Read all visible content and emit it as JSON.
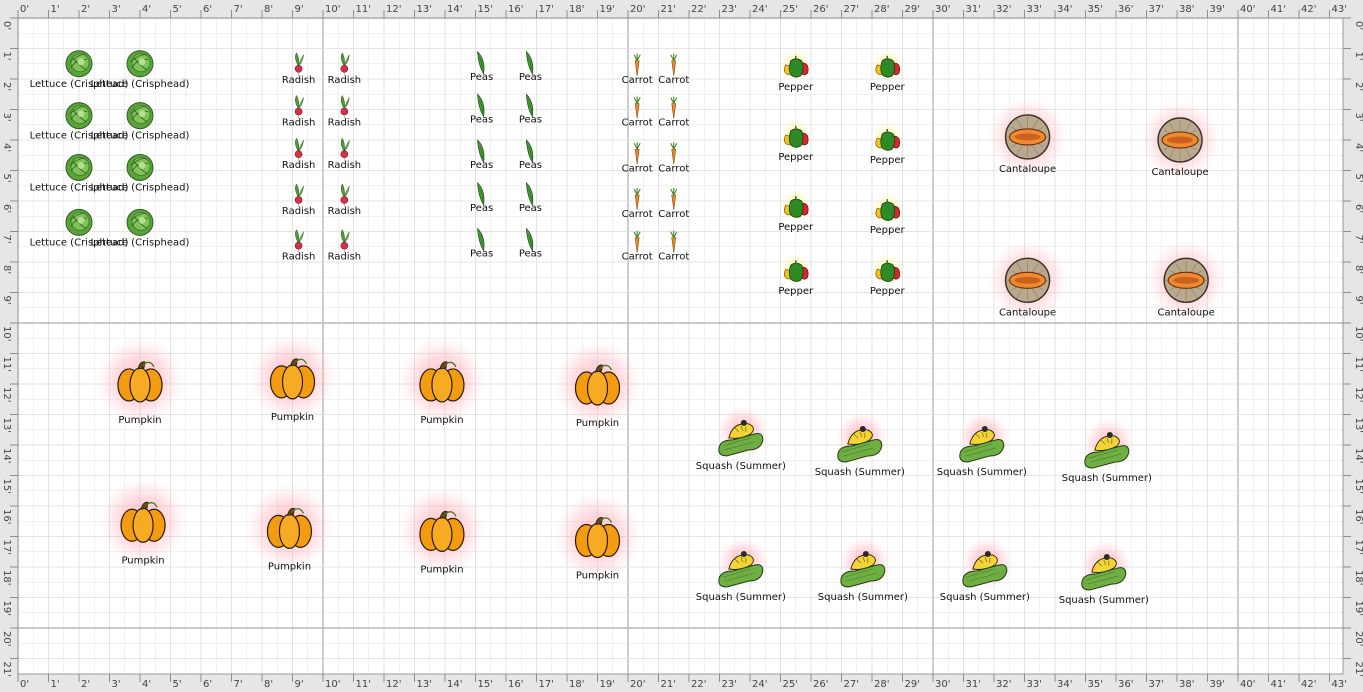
{
  "ruler": {
    "feet_x": [
      "0'",
      "1'",
      "2'",
      "3'",
      "4'",
      "5'",
      "6'",
      "7'",
      "8'",
      "9'",
      "10'",
      "11'",
      "12'",
      "13'",
      "14'",
      "15'",
      "16'",
      "17'",
      "18'",
      "19'",
      "20'",
      "21'",
      "22'",
      "23'",
      "24'",
      "25'",
      "26'",
      "27'",
      "28'",
      "29'",
      "30'",
      "31'",
      "32'",
      "33'",
      "34'",
      "35'",
      "36'",
      "37'",
      "38'",
      "39'",
      "40'",
      "41'",
      "42'",
      "43'"
    ],
    "feet_y": [
      "0'",
      "1'",
      "2'",
      "3'",
      "4'",
      "5'",
      "6'",
      "7'",
      "8'",
      "9'",
      "10'",
      "11'",
      "12'",
      "13'",
      "14'",
      "15'",
      "16'",
      "17'",
      "18'",
      "19'",
      "20'",
      "21'"
    ]
  },
  "colors": {
    "grid_minor": "#dcdcdc",
    "grid_major": "#b8b8b8",
    "ruler_bg": "#e6e6e6",
    "spacing_halo": "#ff9aa8"
  },
  "legend_names": {
    "lettuce": "Lettuce (Crisphead)",
    "radish": "Radish",
    "peas": "Peas",
    "carrot": "Carrot",
    "pepper": "Pepper",
    "cantaloupe": "Cantaloupe",
    "pumpkin": "Pumpkin",
    "squash": "Squash (Summer)"
  },
  "plants": [
    {
      "type": "lettuce",
      "icon": "lettuce-icon",
      "label": "Lettuce (Crisphead)",
      "x_ft": 2.0,
      "y_ft": 1.5
    },
    {
      "type": "lettuce",
      "icon": "lettuce-icon",
      "label": "Lettuce (Crisphead)",
      "x_ft": 4.0,
      "y_ft": 1.5
    },
    {
      "type": "lettuce",
      "icon": "lettuce-icon",
      "label": "Lettuce (Crisphead)",
      "x_ft": 2.0,
      "y_ft": 3.2
    },
    {
      "type": "lettuce",
      "icon": "lettuce-icon",
      "label": "Lettuce (Crisphead)",
      "x_ft": 4.0,
      "y_ft": 3.2
    },
    {
      "type": "lettuce",
      "icon": "lettuce-icon",
      "label": "Lettuce (Crisphead)",
      "x_ft": 2.0,
      "y_ft": 4.9
    },
    {
      "type": "lettuce",
      "icon": "lettuce-icon",
      "label": "Lettuce (Crisphead)",
      "x_ft": 4.0,
      "y_ft": 4.9
    },
    {
      "type": "lettuce",
      "icon": "lettuce-icon",
      "label": "Lettuce (Crisphead)",
      "x_ft": 2.0,
      "y_ft": 6.7
    },
    {
      "type": "lettuce",
      "icon": "lettuce-icon",
      "label": "Lettuce (Crisphead)",
      "x_ft": 4.0,
      "y_ft": 6.7
    },
    {
      "type": "radish",
      "icon": "radish-icon",
      "label": "Radish",
      "x_ft": 9.2,
      "y_ft": 1.6
    },
    {
      "type": "radish",
      "icon": "radish-icon",
      "label": "Radish",
      "x_ft": 10.7,
      "y_ft": 1.6
    },
    {
      "type": "radish",
      "icon": "radish-icon",
      "label": "Radish",
      "x_ft": 9.2,
      "y_ft": 3.0
    },
    {
      "type": "radish",
      "icon": "radish-icon",
      "label": "Radish",
      "x_ft": 10.7,
      "y_ft": 3.0
    },
    {
      "type": "radish",
      "icon": "radish-icon",
      "label": "Radish",
      "x_ft": 9.2,
      "y_ft": 4.4
    },
    {
      "type": "radish",
      "icon": "radish-icon",
      "label": "Radish",
      "x_ft": 10.7,
      "y_ft": 4.4
    },
    {
      "type": "radish",
      "icon": "radish-icon",
      "label": "Radish",
      "x_ft": 9.2,
      "y_ft": 5.9
    },
    {
      "type": "radish",
      "icon": "radish-icon",
      "label": "Radish",
      "x_ft": 10.7,
      "y_ft": 5.9
    },
    {
      "type": "radish",
      "icon": "radish-icon",
      "label": "Radish",
      "x_ft": 9.2,
      "y_ft": 7.4
    },
    {
      "type": "radish",
      "icon": "radish-icon",
      "label": "Radish",
      "x_ft": 10.7,
      "y_ft": 7.4
    },
    {
      "type": "peas",
      "icon": "peas-icon",
      "label": "Peas",
      "x_ft": 15.2,
      "y_ft": 1.5
    },
    {
      "type": "peas",
      "icon": "peas-icon",
      "label": "Peas",
      "x_ft": 16.8,
      "y_ft": 1.5
    },
    {
      "type": "peas",
      "icon": "peas-icon",
      "label": "Peas",
      "x_ft": 15.2,
      "y_ft": 2.9
    },
    {
      "type": "peas",
      "icon": "peas-icon",
      "label": "Peas",
      "x_ft": 16.8,
      "y_ft": 2.9
    },
    {
      "type": "peas",
      "icon": "peas-icon",
      "label": "Peas",
      "x_ft": 15.2,
      "y_ft": 4.4
    },
    {
      "type": "peas",
      "icon": "peas-icon",
      "label": "Peas",
      "x_ft": 16.8,
      "y_ft": 4.4
    },
    {
      "type": "peas",
      "icon": "peas-icon",
      "label": "Peas",
      "x_ft": 15.2,
      "y_ft": 5.8
    },
    {
      "type": "peas",
      "icon": "peas-icon",
      "label": "Peas",
      "x_ft": 16.8,
      "y_ft": 5.8
    },
    {
      "type": "peas",
      "icon": "peas-icon",
      "label": "Peas",
      "x_ft": 15.2,
      "y_ft": 7.3
    },
    {
      "type": "peas",
      "icon": "peas-icon",
      "label": "Peas",
      "x_ft": 16.8,
      "y_ft": 7.3
    },
    {
      "type": "carrot",
      "icon": "carrot-icon",
      "label": "Carrot",
      "x_ft": 20.3,
      "y_ft": 1.6
    },
    {
      "type": "carrot",
      "icon": "carrot-icon",
      "label": "Carrot",
      "x_ft": 21.5,
      "y_ft": 1.6
    },
    {
      "type": "carrot",
      "icon": "carrot-icon",
      "label": "Carrot",
      "x_ft": 20.3,
      "y_ft": 3.0
    },
    {
      "type": "carrot",
      "icon": "carrot-icon",
      "label": "Carrot",
      "x_ft": 21.5,
      "y_ft": 3.0
    },
    {
      "type": "carrot",
      "icon": "carrot-icon",
      "label": "Carrot",
      "x_ft": 20.3,
      "y_ft": 4.5
    },
    {
      "type": "carrot",
      "icon": "carrot-icon",
      "label": "Carrot",
      "x_ft": 21.5,
      "y_ft": 4.5
    },
    {
      "type": "carrot",
      "icon": "carrot-icon",
      "label": "Carrot",
      "x_ft": 20.3,
      "y_ft": 6.0
    },
    {
      "type": "carrot",
      "icon": "carrot-icon",
      "label": "Carrot",
      "x_ft": 21.5,
      "y_ft": 6.0
    },
    {
      "type": "carrot",
      "icon": "carrot-icon",
      "label": "Carrot",
      "x_ft": 20.3,
      "y_ft": 7.4
    },
    {
      "type": "carrot",
      "icon": "carrot-icon",
      "label": "Carrot",
      "x_ft": 21.5,
      "y_ft": 7.4
    },
    {
      "type": "pepper",
      "icon": "pepper-icon",
      "label": "Pepper",
      "x_ft": 25.5,
      "y_ft": 1.6
    },
    {
      "type": "pepper",
      "icon": "pepper-icon",
      "label": "Pepper",
      "x_ft": 28.5,
      "y_ft": 1.6
    },
    {
      "type": "pepper",
      "icon": "pepper-icon",
      "label": "Pepper",
      "x_ft": 25.5,
      "y_ft": 3.9
    },
    {
      "type": "pepper",
      "icon": "pepper-icon",
      "label": "Pepper",
      "x_ft": 28.5,
      "y_ft": 4.0
    },
    {
      "type": "pepper",
      "icon": "pepper-icon",
      "label": "Pepper",
      "x_ft": 25.5,
      "y_ft": 6.2
    },
    {
      "type": "pepper",
      "icon": "pepper-icon",
      "label": "Pepper",
      "x_ft": 28.5,
      "y_ft": 6.3
    },
    {
      "type": "pepper",
      "icon": "pepper-icon",
      "label": "Pepper",
      "x_ft": 25.5,
      "y_ft": 8.3
    },
    {
      "type": "pepper",
      "icon": "pepper-icon",
      "label": "Pepper",
      "x_ft": 28.5,
      "y_ft": 8.3
    },
    {
      "type": "cantaloupe",
      "icon": "cantaloupe-icon",
      "label": "Cantaloupe",
      "x_ft": 33.1,
      "y_ft": 3.9
    },
    {
      "type": "cantaloupe",
      "icon": "cantaloupe-icon",
      "label": "Cantaloupe",
      "x_ft": 38.1,
      "y_ft": 4.0
    },
    {
      "type": "cantaloupe",
      "icon": "cantaloupe-icon",
      "label": "Cantaloupe",
      "x_ft": 33.1,
      "y_ft": 8.6
    },
    {
      "type": "cantaloupe",
      "icon": "cantaloupe-icon",
      "label": "Cantaloupe",
      "x_ft": 38.3,
      "y_ft": 8.6
    },
    {
      "type": "pumpkin",
      "icon": "pumpkin-icon",
      "label": "Pumpkin",
      "x_ft": 4.0,
      "y_ft": 11.9
    },
    {
      "type": "pumpkin",
      "icon": "pumpkin-icon",
      "label": "Pumpkin",
      "x_ft": 9.0,
      "y_ft": 11.8
    },
    {
      "type": "pumpkin",
      "icon": "pumpkin-icon",
      "label": "Pumpkin",
      "x_ft": 13.9,
      "y_ft": 11.9
    },
    {
      "type": "pumpkin",
      "icon": "pumpkin-icon",
      "label": "Pumpkin",
      "x_ft": 19.0,
      "y_ft": 12.0
    },
    {
      "type": "pumpkin",
      "icon": "pumpkin-icon",
      "label": "Pumpkin",
      "x_ft": 4.1,
      "y_ft": 16.5
    },
    {
      "type": "pumpkin",
      "icon": "pumpkin-icon",
      "label": "Pumpkin",
      "x_ft": 8.9,
      "y_ft": 16.7
    },
    {
      "type": "pumpkin",
      "icon": "pumpkin-icon",
      "label": "Pumpkin",
      "x_ft": 13.9,
      "y_ft": 16.8
    },
    {
      "type": "pumpkin",
      "icon": "pumpkin-icon",
      "label": "Pumpkin",
      "x_ft": 19.0,
      "y_ft": 17.0
    },
    {
      "type": "squash",
      "icon": "squash-icon",
      "label": "Squash (Summer)",
      "x_ft": 23.7,
      "y_ft": 13.7
    },
    {
      "type": "squash",
      "icon": "squash-icon",
      "label": "Squash (Summer)",
      "x_ft": 27.6,
      "y_ft": 13.9
    },
    {
      "type": "squash",
      "icon": "squash-icon",
      "label": "Squash (Summer)",
      "x_ft": 31.6,
      "y_ft": 13.9
    },
    {
      "type": "squash",
      "icon": "squash-icon",
      "label": "Squash (Summer)",
      "x_ft": 35.7,
      "y_ft": 14.1
    },
    {
      "type": "squash",
      "icon": "squash-icon",
      "label": "Squash (Summer)",
      "x_ft": 23.7,
      "y_ft": 18.0
    },
    {
      "type": "squash",
      "icon": "squash-icon",
      "label": "Squash (Summer)",
      "x_ft": 27.7,
      "y_ft": 18.0
    },
    {
      "type": "squash",
      "icon": "squash-icon",
      "label": "Squash (Summer)",
      "x_ft": 31.7,
      "y_ft": 18.0
    },
    {
      "type": "squash",
      "icon": "squash-icon",
      "label": "Squash (Summer)",
      "x_ft": 35.6,
      "y_ft": 18.1
    }
  ]
}
